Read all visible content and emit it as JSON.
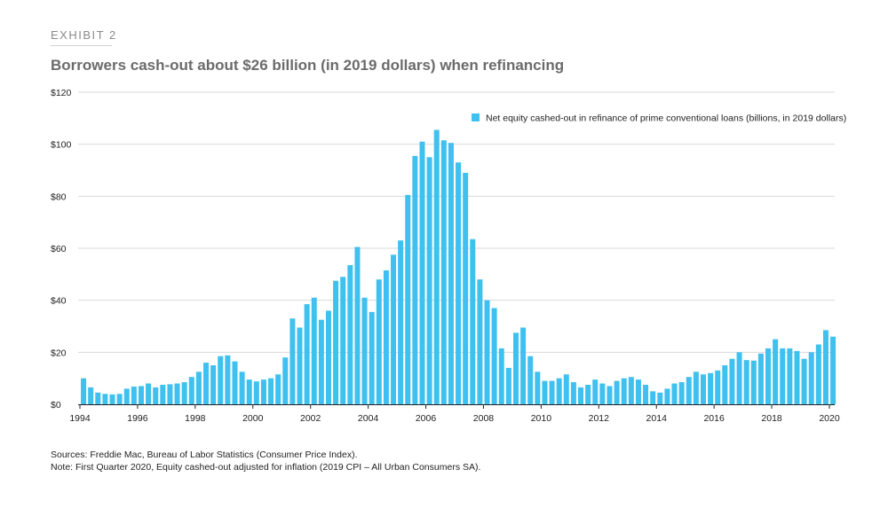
{
  "header": {
    "exhibit_label": "EXHIBIT 2",
    "title": "Borrowers cash-out about $26 billion (in 2019 dollars) when refinancing"
  },
  "colors": {
    "bar": "#3fc1f0",
    "grid": "#d9d9d9",
    "axis": "#222222"
  },
  "chart_data": {
    "type": "bar",
    "title": "Borrowers cash-out about $26 billion (in 2019 dollars) when refinancing",
    "xlabel": "",
    "ylabel": "",
    "ylim": [
      0,
      120
    ],
    "y_ticks": [
      {
        "value": 0,
        "label": "$0"
      },
      {
        "value": 20,
        "label": "$20"
      },
      {
        "value": 40,
        "label": "$40"
      },
      {
        "value": 60,
        "label": "$60"
      },
      {
        "value": 80,
        "label": "$80"
      },
      {
        "value": 100,
        "label": "$100"
      },
      {
        "value": 120,
        "label": "$120"
      }
    ],
    "x_ticks": [
      {
        "value": 1994,
        "label": "1994"
      },
      {
        "value": 1996,
        "label": "1996"
      },
      {
        "value": 1998,
        "label": "1998"
      },
      {
        "value": 2000,
        "label": "2000"
      },
      {
        "value": 2002,
        "label": "2002"
      },
      {
        "value": 2004,
        "label": "2004"
      },
      {
        "value": 2006,
        "label": "2006"
      },
      {
        "value": 2008,
        "label": "2008"
      },
      {
        "value": 2010,
        "label": "2010"
      },
      {
        "value": 2012,
        "label": "2012"
      },
      {
        "value": 2014,
        "label": "2014"
      },
      {
        "value": 2016,
        "label": "2016"
      },
      {
        "value": 2018,
        "label": "2018"
      },
      {
        "value": 2020,
        "label": "2020"
      }
    ],
    "frequency": "quarterly",
    "start_year": 1994,
    "grid": true,
    "legend_position": "top-right",
    "series": [
      {
        "name": "Net equity cashed-out in refinance of prime conventional loans (billions, in 2019 dollars)",
        "values": [
          10,
          6.5,
          4.5,
          4,
          3.8,
          4,
          6,
          6.8,
          7,
          8,
          6.5,
          7.5,
          7.7,
          8,
          8.5,
          10.5,
          12.5,
          16,
          15,
          18.5,
          18.8,
          16.5,
          12.5,
          9.5,
          8.8,
          9.5,
          10,
          11.5,
          18,
          33,
          29.5,
          38.5,
          41,
          32.5,
          36,
          47.5,
          49,
          53.5,
          60.5,
          41,
          35.5,
          48,
          51.5,
          57.5,
          63,
          80.5,
          95.5,
          101,
          95,
          105.5,
          101.5,
          100.5,
          93,
          89,
          63.5,
          48,
          40,
          37,
          21.5,
          14,
          27.5,
          29.5,
          18.5,
          12.5,
          9,
          9,
          10,
          11.5,
          8.5,
          6.5,
          7.5,
          9.5,
          8,
          7,
          9,
          10,
          10.5,
          9.5,
          7.5,
          5,
          4.5,
          6,
          8,
          8.5,
          10.5,
          12.5,
          11.5,
          12,
          13,
          15,
          17.5,
          20,
          17,
          16.8,
          19.5,
          21.5,
          25,
          21.5,
          21.5,
          20.5,
          17.5,
          20,
          23,
          28.5,
          26
        ]
      }
    ]
  },
  "notes": {
    "sources": "Sources: Freddie Mac, Bureau of Labor Statistics (Consumer Price Index).",
    "note": "Note: First Quarter 2020, Equity cashed-out adjusted for inflation (2019 CPI – All Urban Consumers SA)."
  }
}
